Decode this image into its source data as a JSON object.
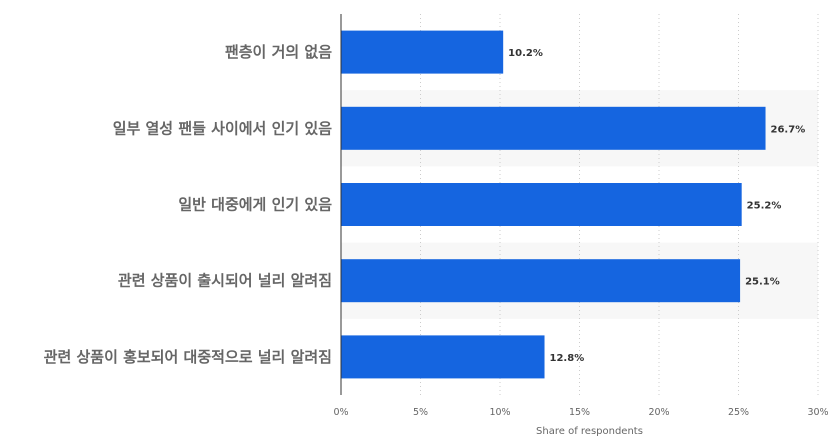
{
  "chart_data": {
    "type": "bar",
    "orientation": "horizontal",
    "categories": [
      "팬층이 거의 없음",
      "일부 열성 팬들 사이에서 인기 있음",
      "일반 대중에게 인기 있음",
      "관련 상품이 출시되어 널리 알려짐",
      "관련 상품이 홍보되어 대중적으로 널리 알려짐"
    ],
    "values": [
      10.2,
      26.7,
      25.2,
      25.1,
      12.8
    ],
    "value_labels": [
      "10.2%",
      "26.7%",
      "25.2%",
      "25.1%",
      "12.8%"
    ],
    "xlim": [
      0,
      30
    ],
    "ticks": [
      0,
      5,
      10,
      15,
      20,
      25,
      30
    ],
    "tick_labels": [
      "0%",
      "5%",
      "10%",
      "15%",
      "20%",
      "25%",
      "30%"
    ],
    "xlabel": "Share of respondents",
    "grid": true,
    "colors": {
      "bar": "#1565e0",
      "band": "#f7f7f7",
      "grid": "#cccccc",
      "axis": "#333333"
    }
  }
}
